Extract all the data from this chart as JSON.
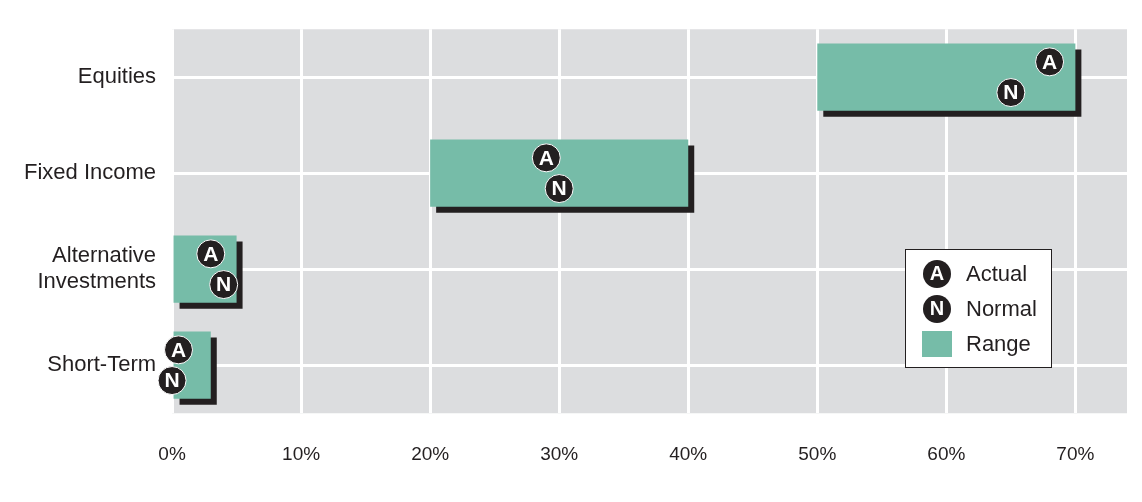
{
  "chart_data": {
    "type": "bar",
    "orientation": "horizontal",
    "categories": [
      "Equities",
      "Fixed Income",
      "Alternative Investments",
      "Short-Term"
    ],
    "series": [
      {
        "name": "Actual",
        "type": "scatter",
        "color": "#231f20",
        "values": [
          68,
          29,
          3,
          0.5
        ],
        "value_labels": [
          "A",
          "A",
          "A",
          "A"
        ]
      },
      {
        "name": "Normal",
        "type": "scatter",
        "color": "#231f20",
        "values": [
          65,
          30,
          4,
          0
        ],
        "value_labels": [
          "N",
          "N",
          "N",
          "N"
        ]
      },
      {
        "name": "Range",
        "color": "#76bca8",
        "values": [
          20,
          20,
          5,
          3
        ],
        "base": [
          50,
          20,
          0,
          0
        ]
      }
    ],
    "xlim": [
      0,
      74
    ],
    "xticks": [
      {
        "value": 0,
        "label": "0%"
      },
      {
        "value": 10,
        "label": "10%"
      },
      {
        "value": 20,
        "label": "20%"
      },
      {
        "value": 30,
        "label": "30%"
      },
      {
        "value": 40,
        "label": "40%"
      },
      {
        "value": 50,
        "label": "50%"
      },
      {
        "value": 60,
        "label": "60%"
      },
      {
        "value": 70,
        "label": "70%"
      }
    ],
    "grid": true,
    "legend": "bottom right",
    "marker": "circle"
  }
}
